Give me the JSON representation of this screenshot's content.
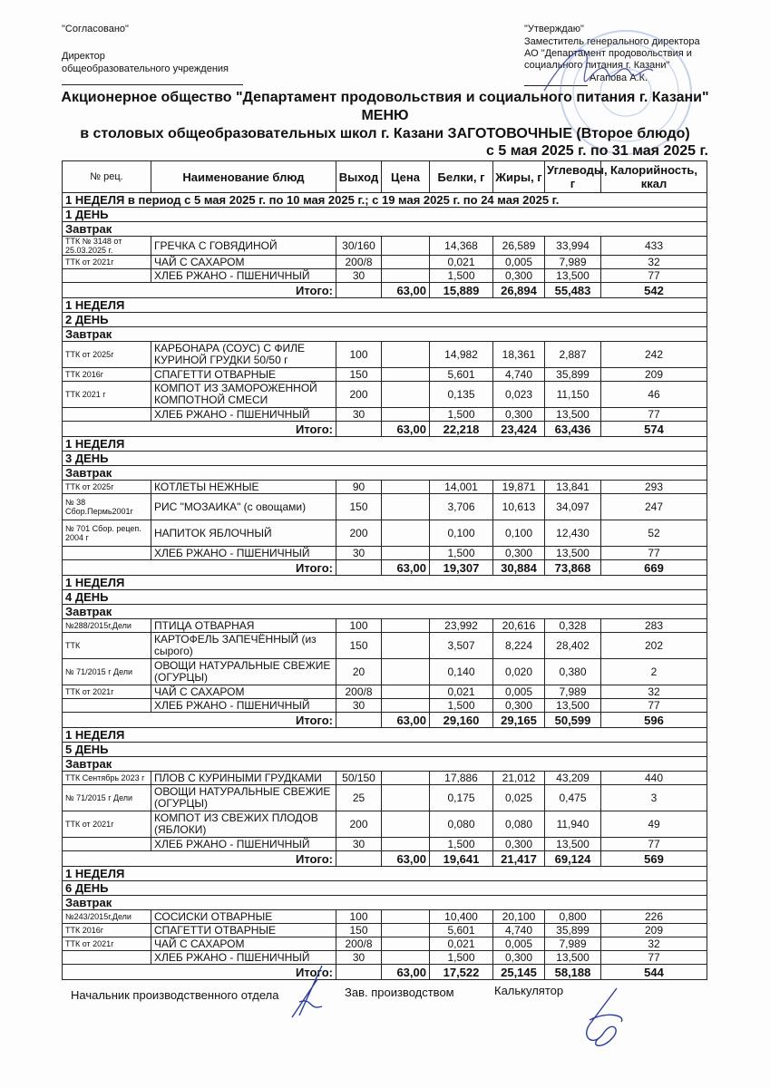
{
  "header": {
    "agreed": "\"Согласовано\"",
    "director_line1": "Директор",
    "director_line2": "общеобразовательного учреждения",
    "approved": "\"Утверждаю\"",
    "approver_line1": "Заместитель генерального директора",
    "approver_line2": "АО \"Департамент продовольствия и",
    "approver_line3": "социального питания г. Казани\"",
    "approver_name": "Агапова А.К."
  },
  "title": {
    "org": "Акционерное общество \"Департамент продовольствия и социального питания г. Казани\"",
    "menu": "МЕНЮ",
    "subtitle": "в столовых общеобразовательных школ г. Казани ЗАГОТОВОЧНЫЕ (Второе блюдо)",
    "period": "с 5 мая 2025 г. по 31 мая 2025 г."
  },
  "columns": [
    "№ рец.",
    "Наименование блюд",
    "Выход",
    "Цена",
    "Белки, г",
    "Жиры, г",
    "Углеводы, г",
    "Калорийность, ккал"
  ],
  "period_row": "1 НЕДЕЛЯ в период  с 5 мая 2025 г. по 10 мая 2025 г.; с 19 мая 2025 г. по 24 мая 2025 г.",
  "total_label": "Итого:",
  "days": [
    {
      "week": "",
      "day": "1 ДЕНЬ",
      "meal": "Завтрак",
      "items": [
        {
          "rec": "ТТК № 3148 от 25.03.2025 г.",
          "name": "ГРЕЧКА С ГОВЯДИНОЙ",
          "out": "30/160",
          "price": "",
          "p": "14,368",
          "f": "26,589",
          "c": "33,994",
          "kcal": "433"
        },
        {
          "rec": "ТТК от 2021г",
          "name": "ЧАЙ С САХАРОМ",
          "out": "200/8",
          "price": "",
          "p": "0,021",
          "f": "0,005",
          "c": "7,989",
          "kcal": "32"
        },
        {
          "rec": "",
          "name": "ХЛЕБ РЖАНО - ПШЕНИЧНЫЙ",
          "out": "30",
          "price": "",
          "p": "1,500",
          "f": "0,300",
          "c": "13,500",
          "kcal": "77"
        }
      ],
      "total": {
        "price": "63,00",
        "p": "15,889",
        "f": "26,894",
        "c": "55,483",
        "kcal": "542"
      }
    },
    {
      "week": "1 НЕДЕЛЯ",
      "day": "2 ДЕНЬ",
      "meal": "Завтрак",
      "items": [
        {
          "rec": "ТТК от 2025г",
          "name": "КАРБОНАРА (СОУС) С ФИЛЕ КУРИНОЙ ГРУДКИ 50/50 г",
          "out": "100",
          "price": "",
          "p": "14,982",
          "f": "18,361",
          "c": "2,887",
          "kcal": "242",
          "tall": true
        },
        {
          "rec": "ТТК 2016г",
          "name": "СПАГЕТТИ ОТВАРНЫЕ",
          "out": "150",
          "price": "",
          "p": "5,601",
          "f": "4,740",
          "c": "35,899",
          "kcal": "209"
        },
        {
          "rec": "ТТК 2021 г",
          "name": "КОМПОТ ИЗ ЗАМОРОЖЕННОЙ КОМПОТНОЙ СМЕСИ",
          "out": "200",
          "price": "",
          "p": "0,135",
          "f": "0,023",
          "c": "11,150",
          "kcal": "46",
          "tall": true
        },
        {
          "rec": "",
          "name": "ХЛЕБ РЖАНО - ПШЕНИЧНЫЙ",
          "out": "30",
          "price": "",
          "p": "1,500",
          "f": "0,300",
          "c": "13,500",
          "kcal": "77"
        }
      ],
      "total": {
        "price": "63,00",
        "p": "22,218",
        "f": "23,424",
        "c": "63,436",
        "kcal": "574"
      }
    },
    {
      "week": "1 НЕДЕЛЯ",
      "day": "3 ДЕНЬ",
      "meal": "Завтрак",
      "items": [
        {
          "rec": "ТТК от 2025г",
          "name": "КОТЛЕТЫ НЕЖНЫЕ",
          "out": "90",
          "price": "",
          "p": "14,001",
          "f": "19,871",
          "c": "13,841",
          "kcal": "293"
        },
        {
          "rec": "№ 38 Сбор.Пермь2001г",
          "name": "РИС \"МОЗАИКА\" (с овощами)",
          "out": "150",
          "price": "",
          "p": "3,706",
          "f": "10,613",
          "c": "34,097",
          "kcal": "247",
          "tall": true
        },
        {
          "rec": "№ 701 Сбор. рецеп. 2004 г",
          "name": "НАПИТОК ЯБЛОЧНЫЙ",
          "out": "200",
          "price": "",
          "p": "0,100",
          "f": "0,100",
          "c": "12,430",
          "kcal": "52",
          "tall": true
        },
        {
          "rec": "",
          "name": "ХЛЕБ РЖАНО - ПШЕНИЧНЫЙ",
          "out": "30",
          "price": "",
          "p": "1,500",
          "f": "0,300",
          "c": "13,500",
          "kcal": "77"
        }
      ],
      "total": {
        "price": "63,00",
        "p": "19,307",
        "f": "30,884",
        "c": "73,868",
        "kcal": "669"
      }
    },
    {
      "week": "1 НЕДЕЛЯ",
      "day": "4 ДЕНЬ",
      "meal": "Завтрак",
      "items": [
        {
          "rec": "№288/2015г,Дели",
          "name": "ПТИЦА ОТВАРНАЯ",
          "out": "100",
          "price": "",
          "p": "23,992",
          "f": "20,616",
          "c": "0,328",
          "kcal": "283"
        },
        {
          "rec": "ТТК",
          "name": "КАРТОФЕЛЬ ЗАПЕЧЁННЫЙ  (из сырого)",
          "out": "150",
          "price": "",
          "p": "3,507",
          "f": "8,224",
          "c": "28,402",
          "kcal": "202",
          "tall": true
        },
        {
          "rec": "№ 71/2015 г Дели",
          "name": "ОВОЩИ НАТУРАЛЬНЫЕ СВЕЖИЕ (ОГУРЦЫ)",
          "out": "20",
          "price": "",
          "p": "0,140",
          "f": "0,020",
          "c": "0,380",
          "kcal": "2",
          "tall": true
        },
        {
          "rec": "ТТК от 2021г",
          "name": "ЧАЙ С САХАРОМ",
          "out": "200/8",
          "price": "",
          "p": "0,021",
          "f": "0,005",
          "c": "7,989",
          "kcal": "32"
        },
        {
          "rec": "",
          "name": "ХЛЕБ РЖАНО - ПШЕНИЧНЫЙ",
          "out": "30",
          "price": "",
          "p": "1,500",
          "f": "0,300",
          "c": "13,500",
          "kcal": "77"
        }
      ],
      "total": {
        "price": "63,00",
        "p": "29,160",
        "f": "29,165",
        "c": "50,599",
        "kcal": "596"
      }
    },
    {
      "week": "1 НЕДЕЛЯ",
      "day": "5 ДЕНЬ",
      "meal": "Завтрак",
      "items": [
        {
          "rec": "ТТК Сентябрь 2023 г",
          "name": "ПЛОВ С КУРИНЫМИ ГРУДКАМИ",
          "out": "50/150",
          "price": "",
          "p": "17,886",
          "f": "21,012",
          "c": "43,209",
          "kcal": "440"
        },
        {
          "rec": "№ 71/2015 г Дели",
          "name": "ОВОЩИ НАТУРАЛЬНЫЕ СВЕЖИЕ (ОГУРЦЫ)",
          "out": "25",
          "price": "",
          "p": "0,175",
          "f": "0,025",
          "c": "0,475",
          "kcal": "3",
          "tall": true
        },
        {
          "rec": "ТТК от 2021г",
          "name": "КОМПОТ ИЗ СВЕЖИХ ПЛОДОВ (ЯБЛОКИ)",
          "out": "200",
          "price": "",
          "p": "0,080",
          "f": "0,080",
          "c": "11,940",
          "kcal": "49",
          "tall": true
        },
        {
          "rec": "",
          "name": "ХЛЕБ РЖАНО - ПШЕНИЧНЫЙ",
          "out": "30",
          "price": "",
          "p": "1,500",
          "f": "0,300",
          "c": "13,500",
          "kcal": "77"
        }
      ],
      "total": {
        "price": "63,00",
        "p": "19,641",
        "f": "21,417",
        "c": "69,124",
        "kcal": "569"
      }
    },
    {
      "week": "1 НЕДЕЛЯ",
      "day": "6 ДЕНЬ",
      "meal": "Завтрак",
      "items": [
        {
          "rec": "№243/2015г,Дели",
          "name": "СОСИСКИ ОТВАРНЫЕ",
          "out": "100",
          "price": "",
          "p": "10,400",
          "f": "20,100",
          "c": "0,800",
          "kcal": "226"
        },
        {
          "rec": "ТТК 2016г",
          "name": "СПАГЕТТИ ОТВАРНЫЕ",
          "out": "150",
          "price": "",
          "p": "5,601",
          "f": "4,740",
          "c": "35,899",
          "kcal": "209"
        },
        {
          "rec": "ТТК от 2021г",
          "name": "ЧАЙ С САХАРОМ",
          "out": "200/8",
          "price": "",
          "p": "0,021",
          "f": "0,005",
          "c": "7,989",
          "kcal": "32"
        },
        {
          "rec": "",
          "name": "ХЛЕБ РЖАНО - ПШЕНИЧНЫЙ",
          "out": "30",
          "price": "",
          "p": "1,500",
          "f": "0,300",
          "c": "13,500",
          "kcal": "77"
        }
      ],
      "total": {
        "price": "63,00",
        "p": "17,522",
        "f": "25,145",
        "c": "58,188",
        "kcal": "544"
      }
    }
  ],
  "footer": {
    "head_of_production": "Начальник производственного отдела",
    "production_manager": "Зав. производством",
    "calculator": "Калькулятор"
  },
  "colors": {
    "ink": "#111111",
    "stamp": "#5b7fd0",
    "signature": "#2a3aa8"
  }
}
